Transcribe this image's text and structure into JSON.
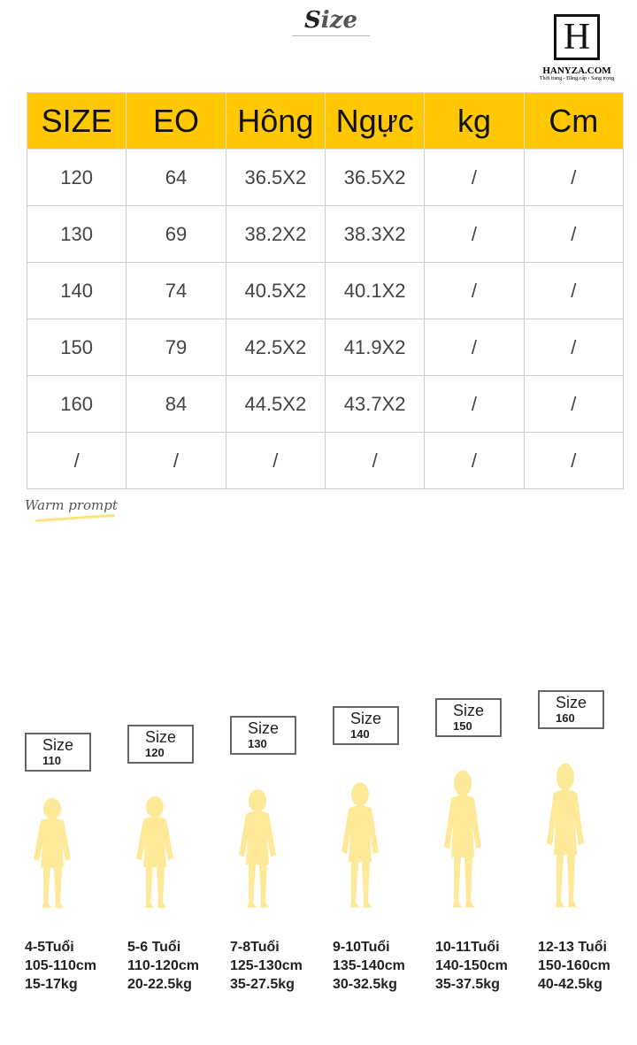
{
  "title_first": "S",
  "title_rest": "ize",
  "logo": {
    "letter": "H",
    "name": "HANYZA.COM",
    "tagline": "Thời trang - Đẳng cấp - Sang trọng"
  },
  "table": {
    "headers": [
      "SIZE",
      "EO",
      "Hông",
      "Ngực",
      "kg",
      "Cm"
    ],
    "rows": [
      [
        "120",
        "64",
        "36.5X2",
        "36.5X2",
        "/",
        "/"
      ],
      [
        "130",
        "69",
        "38.2X2",
        "38.3X2",
        "/",
        "/"
      ],
      [
        "140",
        "74",
        "40.5X2",
        "40.1X2",
        "/",
        "/"
      ],
      [
        "150",
        "79",
        "42.5X2",
        "41.9X2",
        "/",
        "/"
      ],
      [
        "160",
        "84",
        "44.5X2",
        "43.7X2",
        "/",
        "/"
      ],
      [
        "/",
        "/",
        "/",
        "/",
        "/",
        "/"
      ]
    ]
  },
  "warm_prompt": "Warm prompt",
  "accent_color": "#ffc800",
  "figure_color": "#fde998",
  "sizes": [
    {
      "label": "Size",
      "size": "110",
      "age": "4-5Tuổi",
      "height": "105-110cm",
      "weight": "15-17kg"
    },
    {
      "label": "Size",
      "size": "120",
      "age": "5-6 Tuổi",
      "height": "110-120cm",
      "weight": "20-22.5kg"
    },
    {
      "label": "Size",
      "size": "130",
      "age": "7-8Tuổi",
      "height": "125-130cm",
      "weight": "35-27.5kg"
    },
    {
      "label": "Size",
      "size": "140",
      "age": "9-10Tuổi",
      "height": "135-140cm",
      "weight": "30-32.5kg"
    },
    {
      "label": "Size",
      "size": "150",
      "age": "10-11Tuổi",
      "height": "140-150cm",
      "weight": "35-37.5kg"
    },
    {
      "label": "Size",
      "size": "160",
      "age": "12-13 Tuổi",
      "height": "150-160cm",
      "weight": "40-42.5kg"
    }
  ]
}
